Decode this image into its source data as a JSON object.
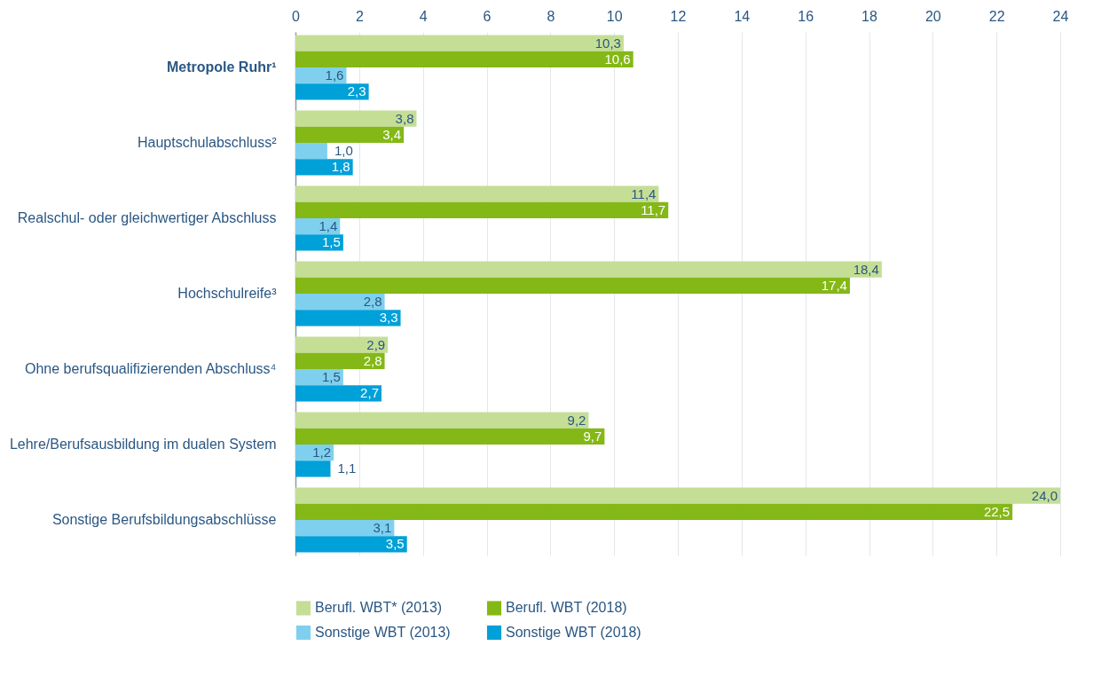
{
  "chart_data": {
    "type": "bar",
    "orientation": "horizontal",
    "categories": [
      "Metropole Ruhr¹",
      "Hauptschulabschluss²",
      "Realschul- oder gleichwertiger Abschluss",
      "Hochschulreife³",
      "Ohne berufsqualifizierenden Abschluss⁴",
      "Lehre/Berufsausbildung im dualen System",
      "Sonstige Berufsbildungsabschlüsse"
    ],
    "series": [
      {
        "name": "Berufl. WBT* (2013)",
        "color": "#c5de96",
        "values": [
          10.3,
          3.8,
          11.4,
          18.4,
          2.9,
          9.2,
          24.0
        ],
        "value_labels": [
          "10,3",
          "3,8",
          "11,4",
          "18,4",
          "2,9",
          "9,2",
          "24,0"
        ]
      },
      {
        "name": "Berufl. WBT (2018)",
        "color": "#84b817",
        "values": [
          10.6,
          3.4,
          11.7,
          17.4,
          2.8,
          9.7,
          22.5
        ],
        "value_labels": [
          "10,6",
          "3,4",
          "11,7",
          "17,4",
          "2,8",
          "9,7",
          "22,5"
        ]
      },
      {
        "name": "Sonstige WBT (2013)",
        "color": "#7fd0ee",
        "values": [
          1.6,
          1.0,
          1.4,
          2.8,
          1.5,
          1.2,
          3.1
        ],
        "value_labels": [
          "1,6",
          "1,0",
          "1,4",
          "2,8",
          "1,5",
          "1,2",
          "3,1"
        ]
      },
      {
        "name": "Sonstige WBT (2018)",
        "color": "#00a0d8",
        "values": [
          2.3,
          1.8,
          1.5,
          3.3,
          2.7,
          1.1,
          3.5
        ],
        "value_labels": [
          "2,3",
          "1,8",
          "1,5",
          "3,3",
          "2,7",
          "1,1",
          "3,5"
        ]
      }
    ],
    "xlim": [
      0,
      24
    ],
    "xticks": [
      0,
      2,
      4,
      6,
      8,
      10,
      12,
      14,
      16,
      18,
      20,
      22,
      24
    ],
    "grid": "x",
    "legend": "bottom"
  }
}
